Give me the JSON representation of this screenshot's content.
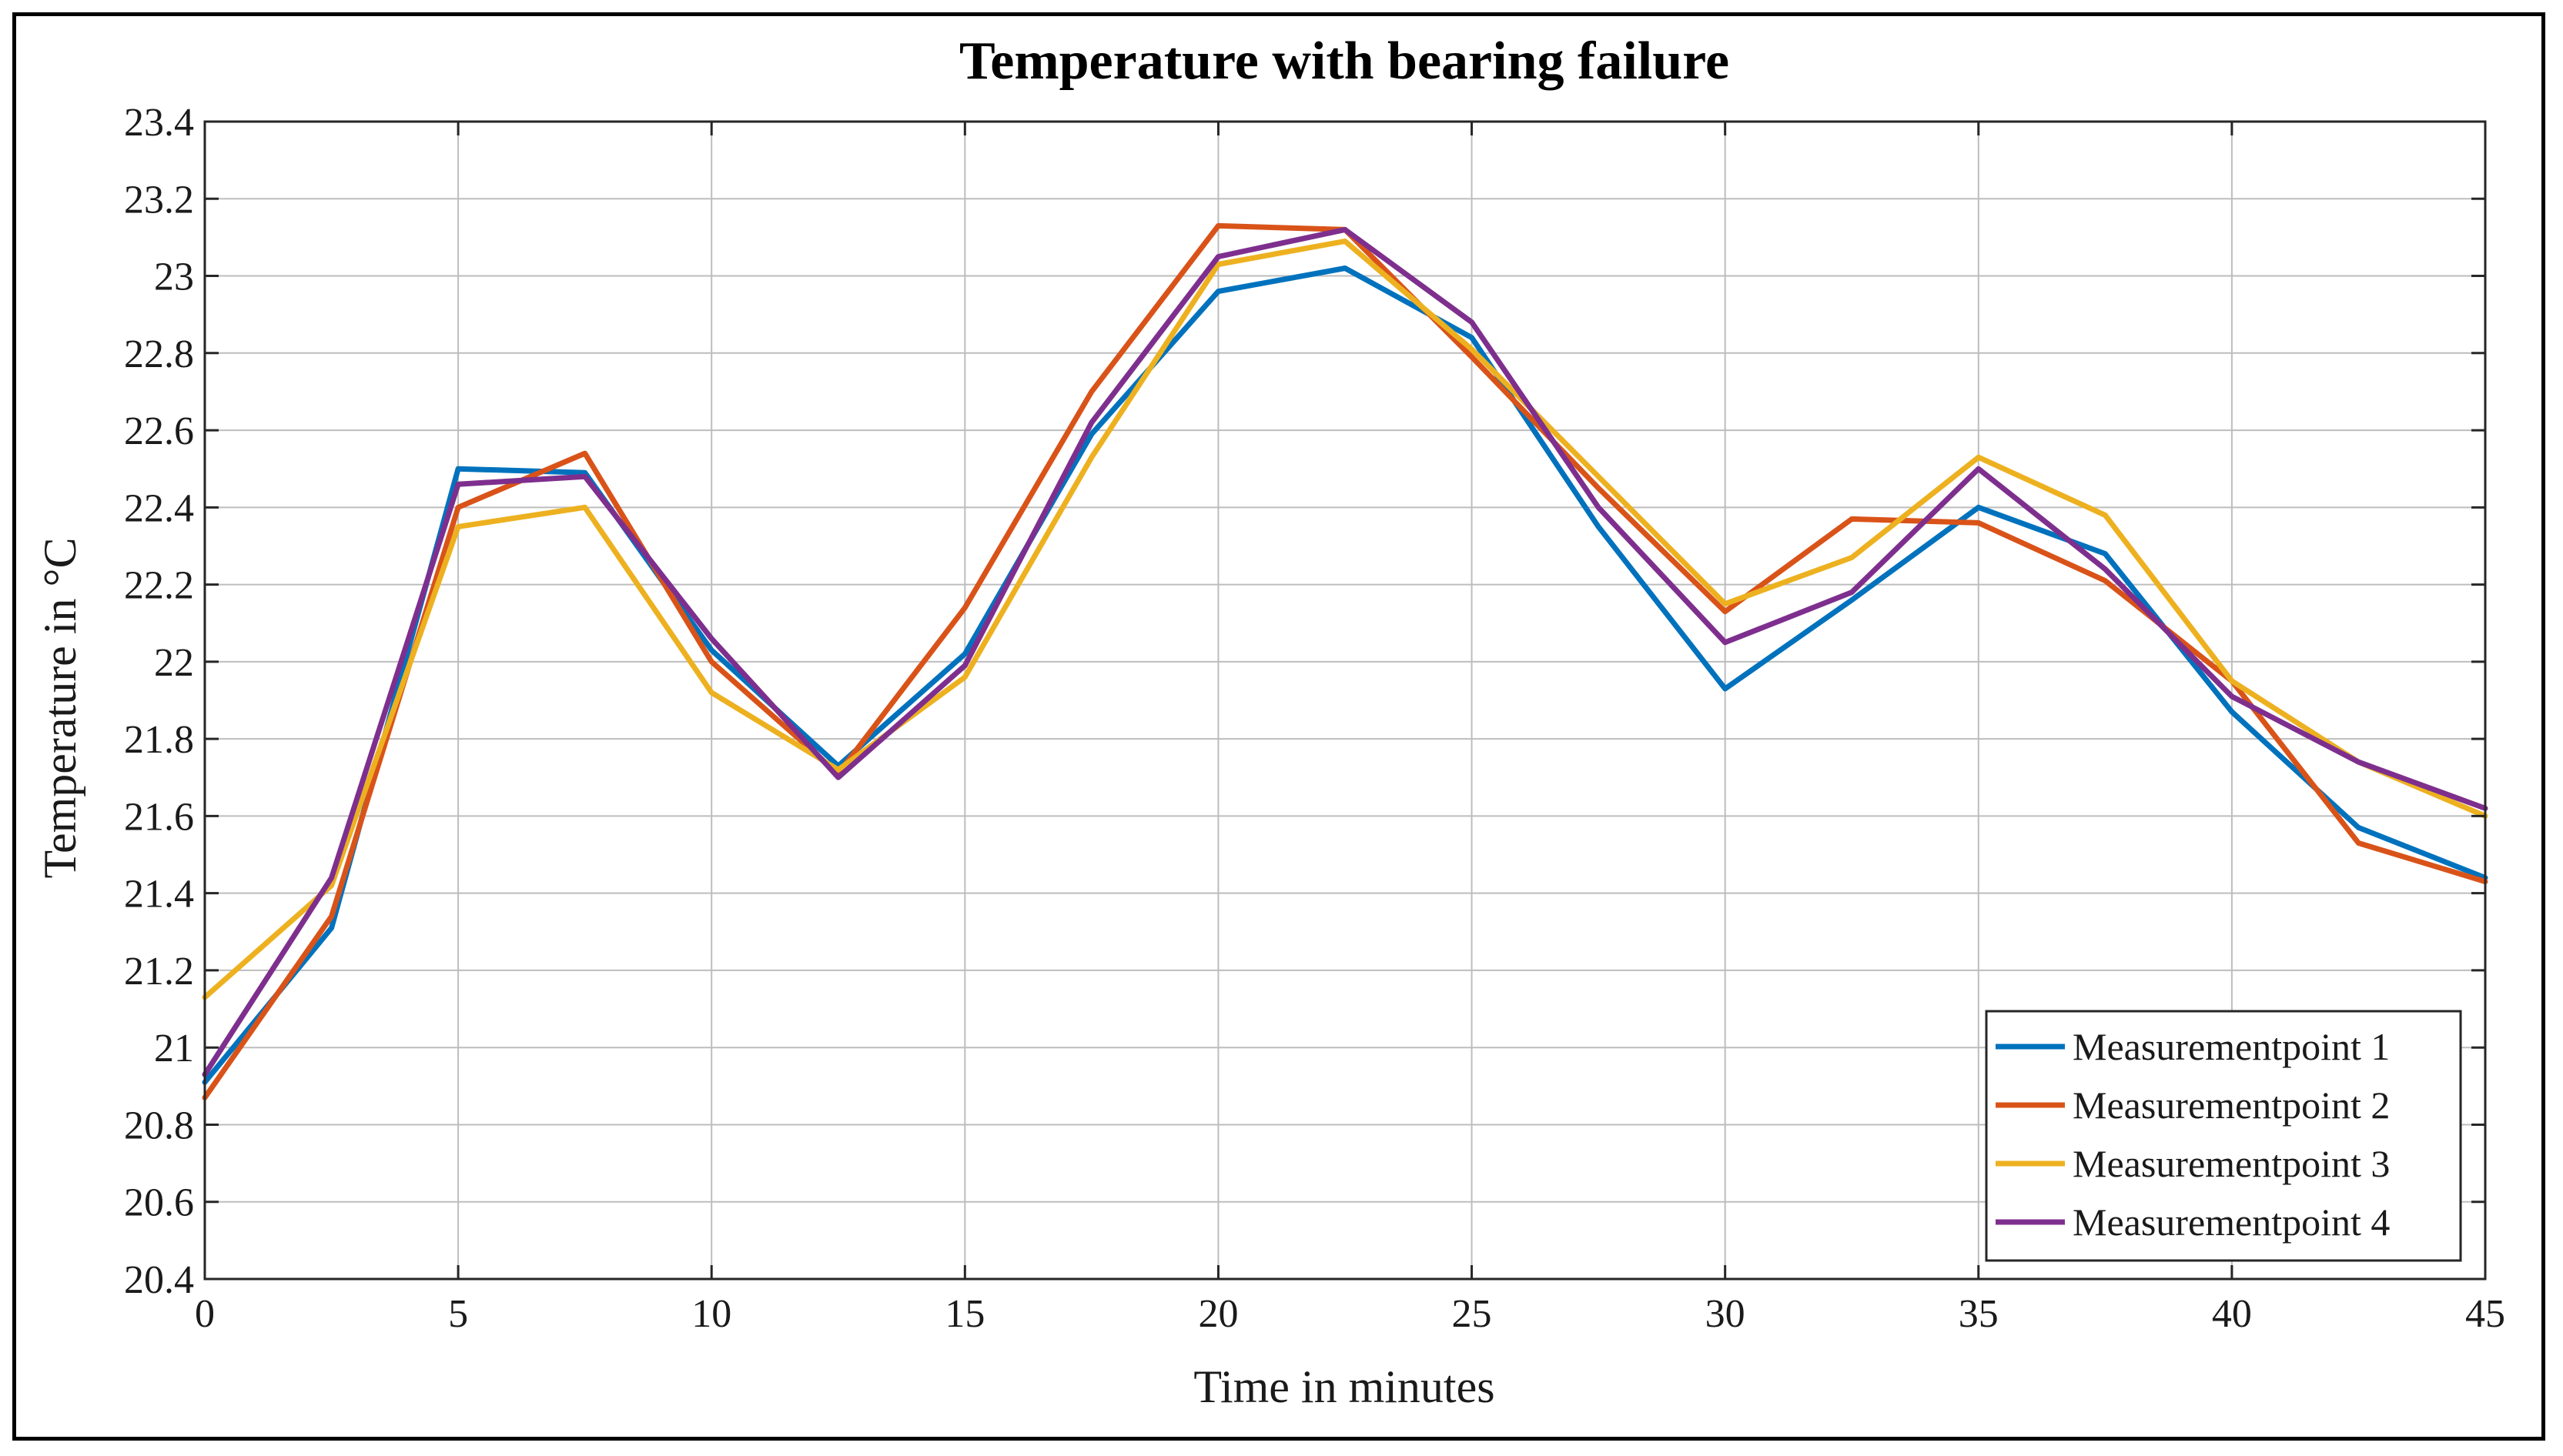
{
  "chart_data": {
    "type": "line",
    "title": "Temperature with bearing failure",
    "xlabel": "Time in minutes",
    "ylabel": "Temperature in °C",
    "xlim": [
      0,
      45
    ],
    "ylim": [
      20.4,
      23.4
    ],
    "xticks": [
      0,
      5,
      10,
      15,
      20,
      25,
      30,
      35,
      40,
      45
    ],
    "xtick_labels": [
      "0",
      "5",
      "10",
      "15",
      "20",
      "25",
      "30",
      "35",
      "40",
      "45"
    ],
    "yticks": [
      20.4,
      20.6,
      20.8,
      21,
      21.2,
      21.4,
      21.6,
      21.8,
      22,
      22.2,
      22.4,
      22.6,
      22.8,
      23,
      23.2,
      23.4
    ],
    "ytick_labels": [
      "20.4",
      "20.6",
      "20.8",
      "21",
      "21.2",
      "21.4",
      "21.6",
      "21.8",
      "22",
      "22.2",
      "22.4",
      "22.6",
      "22.8",
      "23",
      "23.2",
      "23.4"
    ],
    "grid": true,
    "legend_position": "bottom-right",
    "x": [
      0,
      2.5,
      5,
      7.5,
      10,
      12.5,
      15,
      17.5,
      20,
      22.5,
      25,
      27.5,
      30,
      32.5,
      35,
      37.5,
      40,
      42.5,
      45
    ],
    "series": [
      {
        "name": "Measurementpoint 1",
        "color": "#0072BD",
        "values": [
          20.91,
          21.31,
          22.5,
          22.49,
          22.03,
          21.73,
          22.02,
          22.59,
          22.96,
          23.02,
          22.84,
          22.35,
          21.93,
          22.16,
          22.4,
          22.28,
          21.87,
          21.57,
          21.44
        ]
      },
      {
        "name": "Measurementpoint 2",
        "color": "#D95319",
        "values": [
          20.87,
          21.34,
          22.4,
          22.54,
          22.0,
          21.71,
          22.14,
          22.7,
          23.13,
          23.12,
          22.79,
          22.45,
          22.13,
          22.37,
          22.36,
          22.21,
          21.95,
          21.53,
          21.43
        ]
      },
      {
        "name": "Measurementpoint 3",
        "color": "#EDB120",
        "values": [
          21.13,
          21.42,
          22.35,
          22.4,
          21.92,
          21.72,
          21.96,
          22.53,
          23.03,
          23.09,
          22.81,
          22.48,
          22.15,
          22.27,
          22.53,
          22.38,
          21.95,
          21.74,
          21.6
        ]
      },
      {
        "name": "Measurementpoint 4",
        "color": "#7E2F8E",
        "values": [
          20.93,
          21.44,
          22.46,
          22.48,
          22.06,
          21.7,
          21.99,
          22.62,
          23.05,
          23.12,
          22.88,
          22.4,
          22.05,
          22.18,
          22.5,
          22.24,
          21.91,
          21.74,
          21.62
        ]
      }
    ]
  }
}
